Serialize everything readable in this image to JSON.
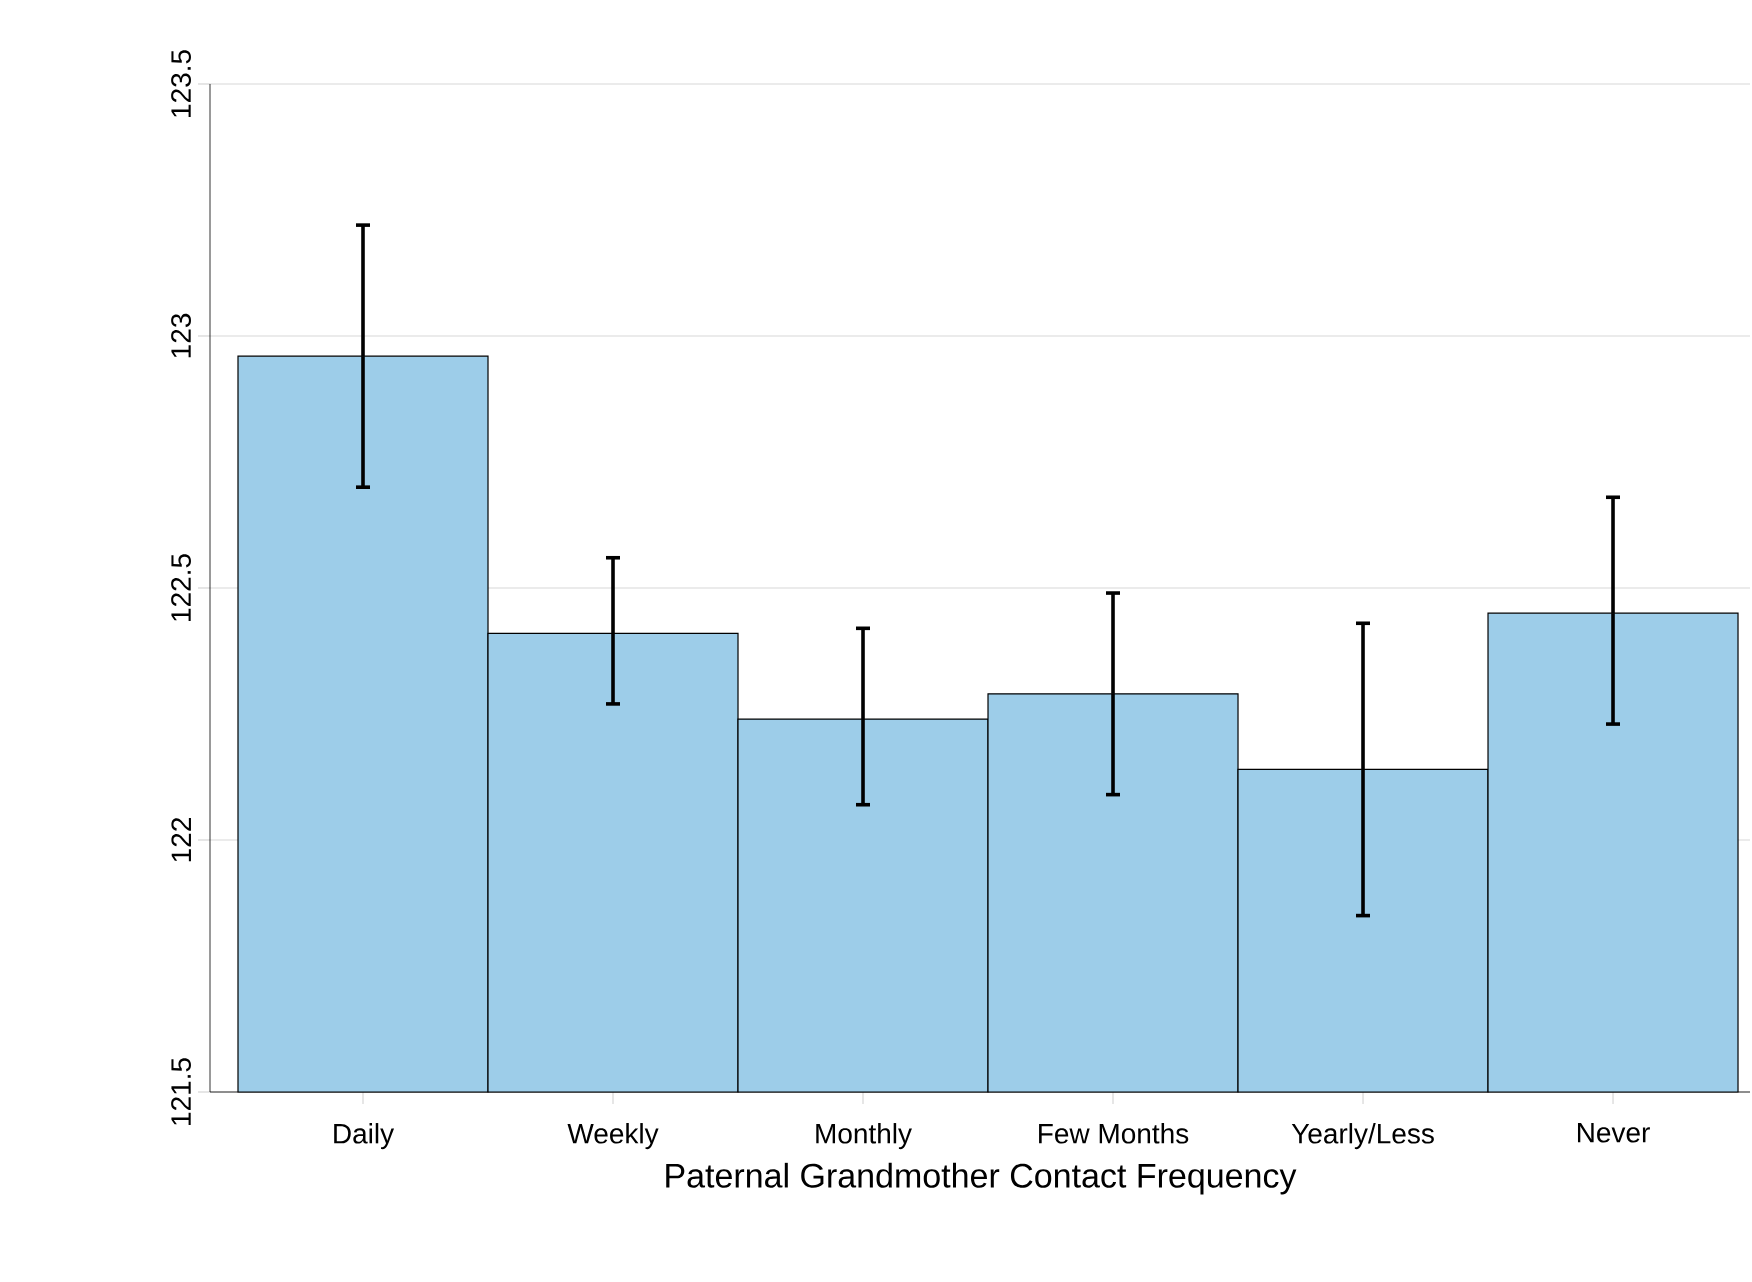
{
  "chart_data": {
    "type": "bar",
    "xlabel": "Paternal Grandmother Contact Frequency",
    "categories": [
      "Daily",
      "Weekly",
      "Monthly",
      "Few Months",
      "Yearly/Less",
      "Never"
    ],
    "values": [
      122.96,
      122.41,
      122.24,
      122.29,
      122.14,
      122.45
    ],
    "errors": [
      [
        122.7,
        123.22
      ],
      [
        122.27,
        122.56
      ],
      [
        122.07,
        122.42
      ],
      [
        122.09,
        122.49
      ],
      [
        121.85,
        122.43
      ],
      [
        122.23,
        122.68
      ]
    ],
    "color": "#9dcde9",
    "ylim": [
      121.5,
      123.5
    ],
    "yticks": [
      121.5,
      122,
      122.5,
      123,
      123.5
    ],
    "grid": "y"
  }
}
